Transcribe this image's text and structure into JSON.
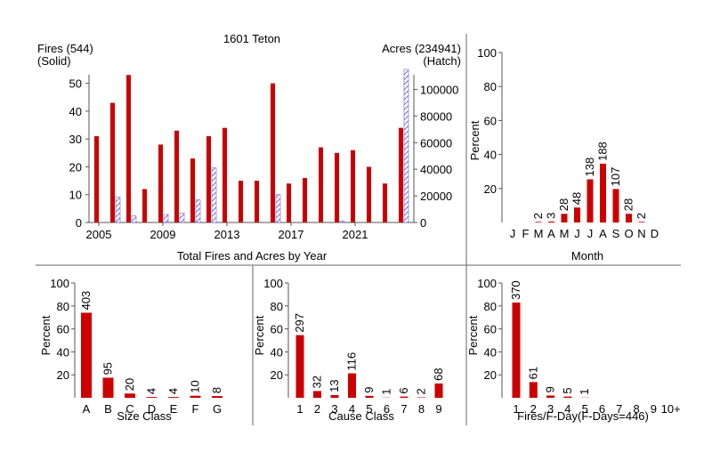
{
  "colors": {
    "fire": "#cc0000",
    "acre": "#3333cc",
    "divider": "#666666",
    "axis": "#555555"
  },
  "chart_data": [
    {
      "id": "yearly",
      "type": "bar",
      "title": "1601 Teton",
      "xlabel": "Total Fires and Acres by Year",
      "left_label_1": "Fires (544)",
      "left_label_2": "(Solid)",
      "right_label_1": "Acres (234941)",
      "right_label_2": "(Hatch)",
      "ylim": [
        0,
        55
      ],
      "y2lim": [
        0,
        115000
      ],
      "yticks": [
        "0",
        "10",
        "20",
        "30",
        "40",
        "50"
      ],
      "y2ticks": [
        "0",
        "20000",
        "40000",
        "60000",
        "80000",
        "100000"
      ],
      "xticks": [
        "2005",
        "2009",
        "2013",
        "2017",
        "2021"
      ],
      "categories": [
        "2005",
        "2006",
        "2007",
        "2008",
        "2009",
        "2010",
        "2011",
        "2012",
        "2013",
        "2014",
        "2015",
        "2016",
        "2017",
        "2018",
        "2019",
        "2020",
        "2021",
        "2022",
        "2023",
        "2024"
      ],
      "series": [
        {
          "name": "Fires (544)",
          "values": [
            31,
            43,
            53,
            12,
            28,
            33,
            23,
            31,
            34,
            15,
            15,
            50,
            14,
            16,
            27,
            25,
            26,
            20,
            14,
            34
          ]
        },
        {
          "name": "Acres (234941)",
          "values": [
            0,
            19000,
            5000,
            0,
            6000,
            7000,
            17000,
            41000,
            0,
            0,
            0,
            21000,
            0,
            0,
            0,
            1000,
            0,
            0,
            0,
            115000
          ]
        }
      ]
    },
    {
      "id": "month",
      "type": "bar",
      "xlabel": "Month",
      "ylabel": "Percent",
      "ylim": [
        0,
        100
      ],
      "yticks": [
        "20",
        "40",
        "60",
        "80",
        "100"
      ],
      "categories": [
        "J",
        "F",
        "M",
        "A",
        "M",
        "J",
        "J",
        "A",
        "S",
        "O",
        "N",
        "D"
      ],
      "values": [
        0,
        0,
        0.4,
        0.6,
        5.1,
        8.8,
        25.4,
        34.6,
        19.7,
        5.1,
        0.4,
        0
      ],
      "labels": [
        "",
        "",
        "2",
        "3",
        "28",
        "48",
        "138",
        "188",
        "107",
        "28",
        "2",
        ""
      ]
    },
    {
      "id": "size",
      "type": "bar",
      "xlabel": "Size Class",
      "ylabel": "Percent",
      "ylim": [
        0,
        100
      ],
      "yticks": [
        "20",
        "40",
        "60",
        "80",
        "100"
      ],
      "categories": [
        "A",
        "B",
        "C",
        "D",
        "E",
        "F",
        "G"
      ],
      "values": [
        74.1,
        17.5,
        3.7,
        0.7,
        0.7,
        1.8,
        1.5
      ],
      "labels": [
        "403",
        "95",
        "20",
        "4",
        "4",
        "10",
        "8"
      ]
    },
    {
      "id": "cause",
      "type": "bar",
      "xlabel": "Cause Class",
      "ylabel": "Percent",
      "ylim": [
        0,
        100
      ],
      "yticks": [
        "20",
        "40",
        "60",
        "80",
        "100"
      ],
      "categories": [
        "1",
        "2",
        "3",
        "4",
        "5",
        "6",
        "7",
        "8",
        "9"
      ],
      "values": [
        54.6,
        5.9,
        2.4,
        21.3,
        1.7,
        0.2,
        1.1,
        0.4,
        12.5
      ],
      "labels": [
        "297",
        "32",
        "13",
        "116",
        "9",
        "1",
        "6",
        "2",
        "68"
      ]
    },
    {
      "id": "fday",
      "type": "bar",
      "xlabel": "Fires/F-Day(F-Days=446)",
      "ylabel": "Percent",
      "ylim": [
        0,
        100
      ],
      "yticks": [
        "20",
        "40",
        "60",
        "80",
        "100"
      ],
      "categories": [
        "1",
        "2",
        "3",
        "4",
        "5",
        "6",
        "7",
        "8",
        "9",
        "10+"
      ],
      "values": [
        83.0,
        13.7,
        2.0,
        1.1,
        0.2,
        0,
        0,
        0,
        0,
        0
      ],
      "labels": [
        "370",
        "61",
        "9",
        "5",
        "1",
        "",
        "",
        "",
        "",
        ""
      ]
    }
  ]
}
